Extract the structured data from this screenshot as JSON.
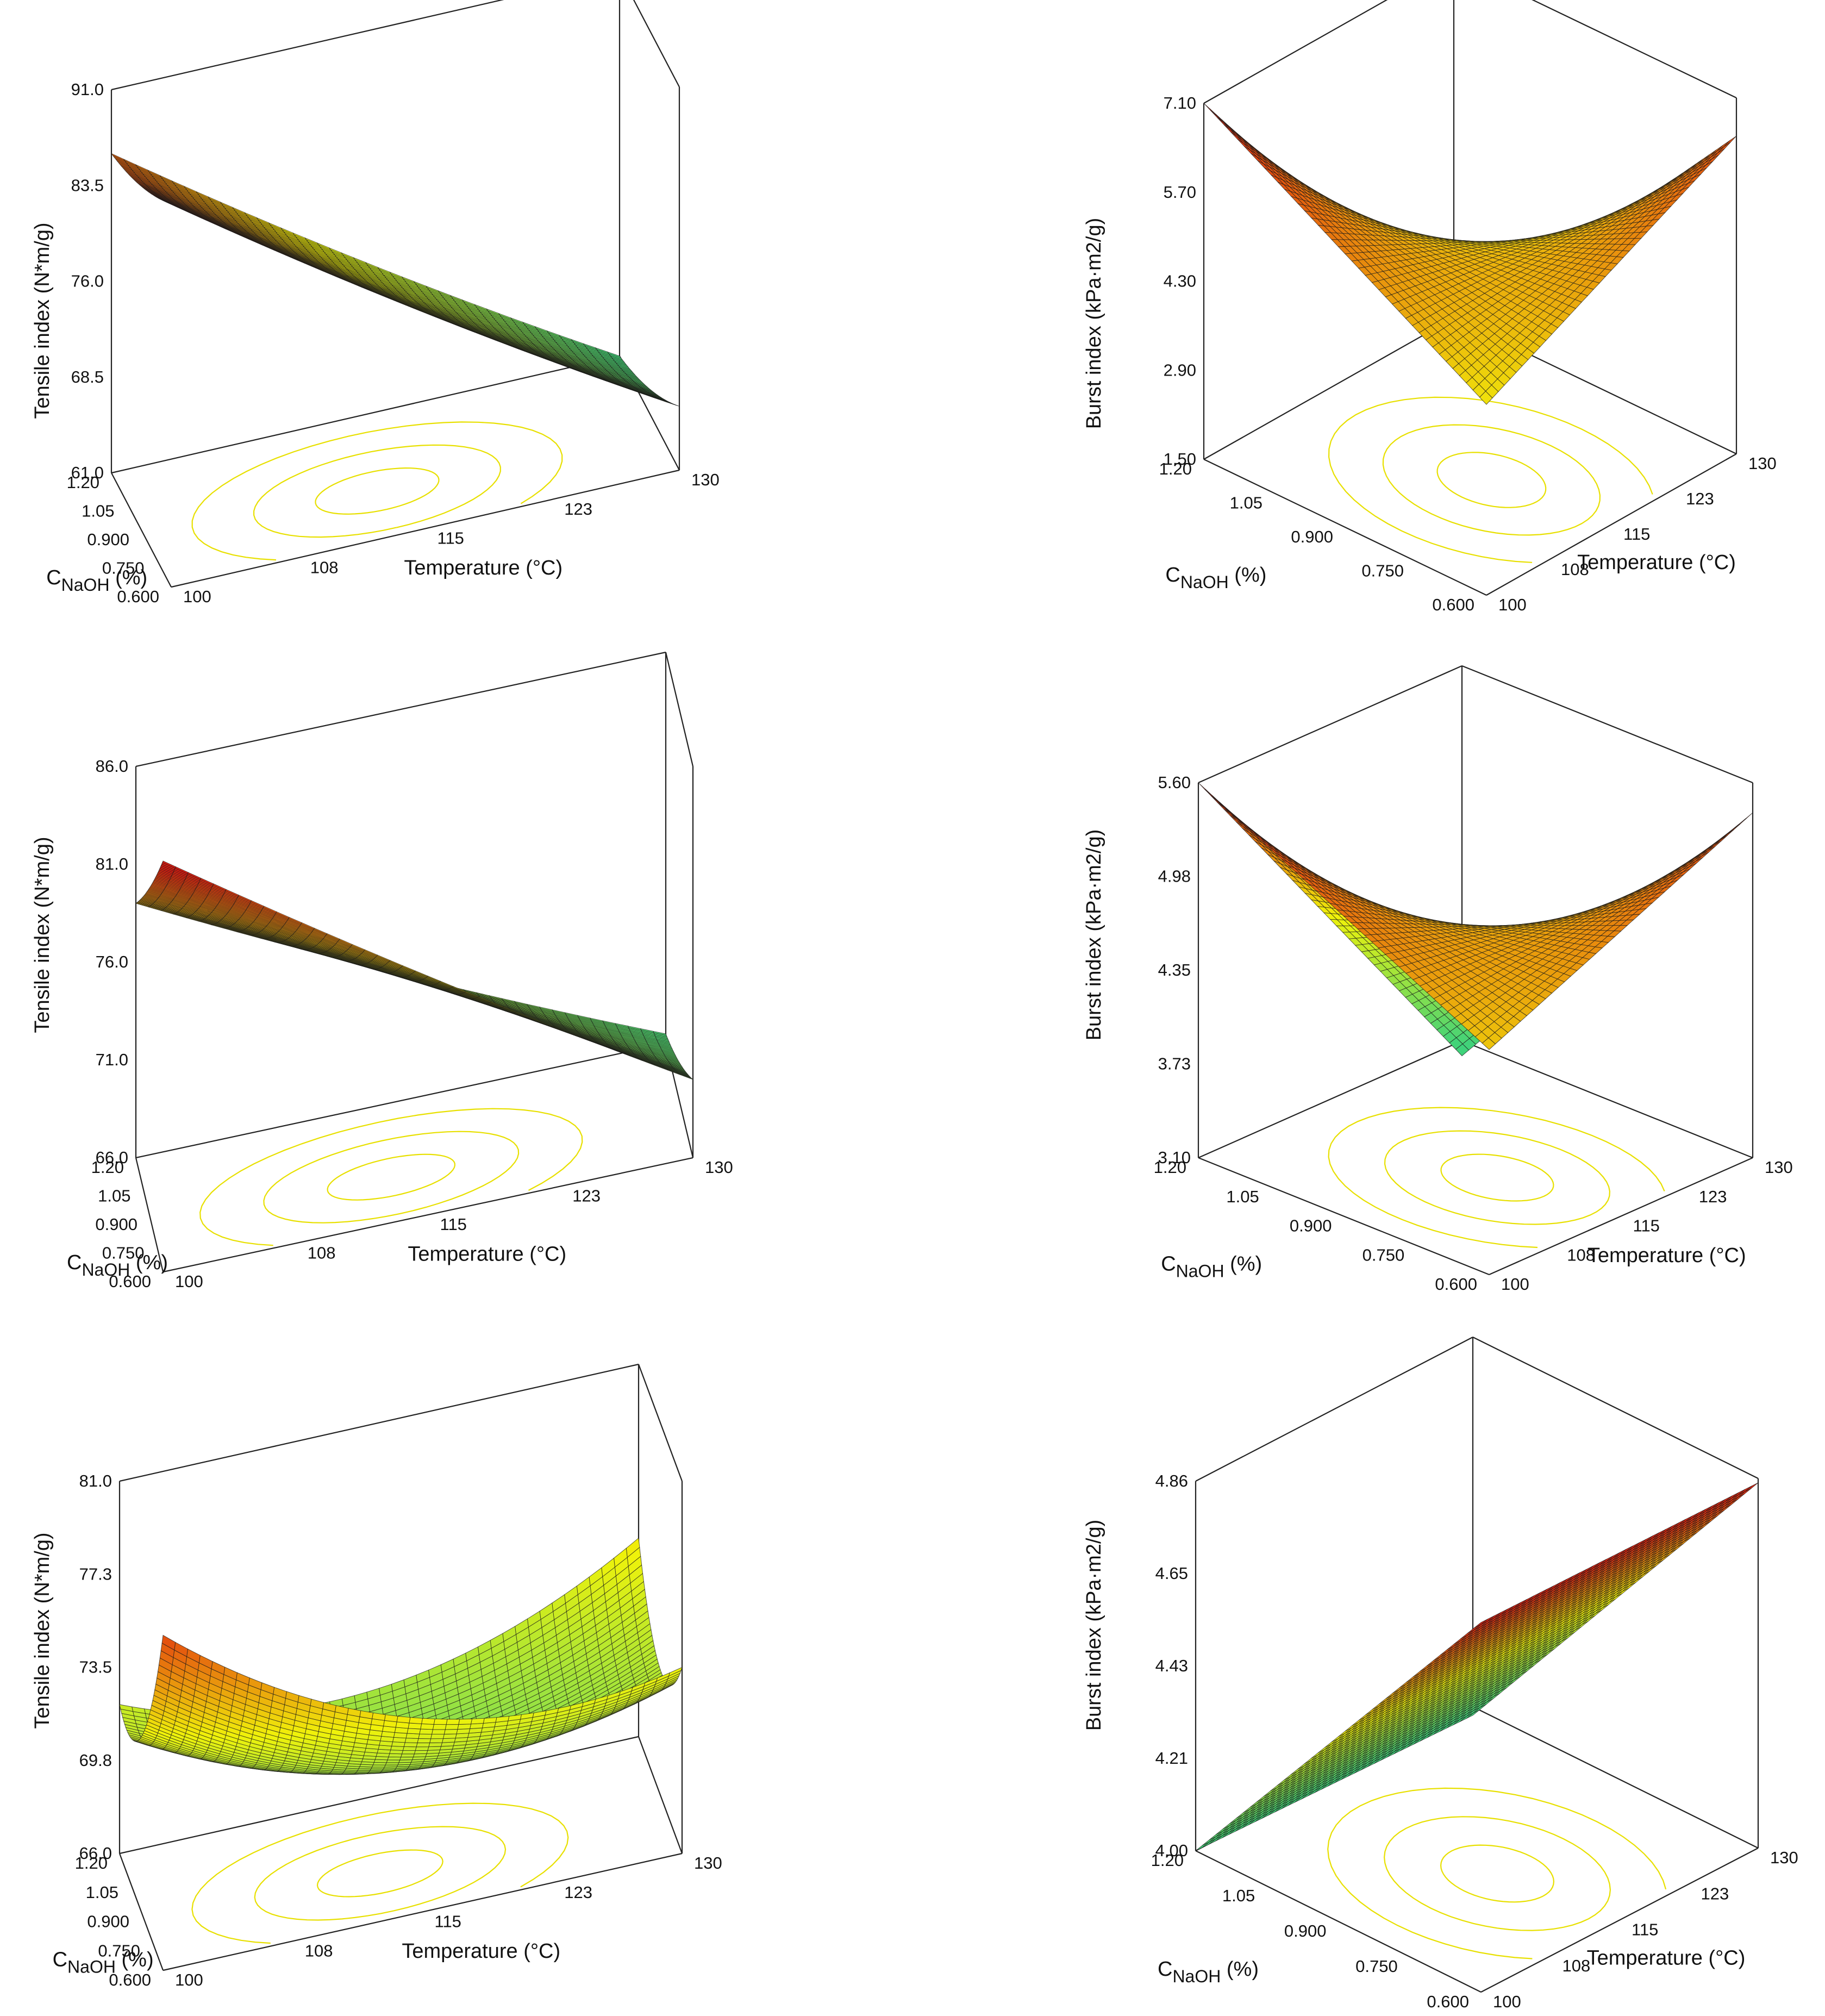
{
  "chart_data": [
    {
      "type": "surface3d",
      "title": "",
      "zlabel": "Tensile index (N*m/g)",
      "xlabel_main": "C",
      "xlabel_sub": "NaOH",
      "xlabel_unit": " (%)",
      "ylabel": "Temperature (°C)",
      "z_ticks": [
        "61.0",
        "68.5",
        "76.0",
        "83.5",
        "91.0"
      ],
      "zlim": [
        61.0,
        91.0
      ],
      "x_ticks": [
        "1.20",
        "1.05",
        "0.900",
        "0.750",
        "0.600"
      ],
      "xlim": [
        0.6,
        1.2
      ],
      "y_ticks": [
        "100",
        "108",
        "115",
        "123",
        "130"
      ],
      "ylim": [
        100,
        130
      ],
      "corners": {
        "c1.20_t100": 86.0,
        "c0.600_t100": 91.0,
        "c0.600_t130": 66.0,
        "c1.20_t130": 61.0
      },
      "minimum": 60.0
    },
    {
      "type": "surface3d",
      "title": "",
      "zlabel": "Burst index (kPa·m2/g)",
      "xlabel_main": "C",
      "xlabel_sub": "NaOH",
      "xlabel_unit": " (%)",
      "ylabel": "Temperature (°C)",
      "z_ticks": [
        "1.50",
        "2.90",
        "4.30",
        "5.70",
        "7.10"
      ],
      "zlim": [
        1.5,
        7.1
      ],
      "x_ticks": [
        "1.20",
        "1.05",
        "0.900",
        "0.750",
        "0.600"
      ],
      "xlim": [
        0.6,
        1.2
      ],
      "y_ticks": [
        "100",
        "108",
        "115",
        "123",
        "130"
      ],
      "ylim": [
        100,
        130
      ],
      "corners": {
        "c1.20_t100": 7.1,
        "c0.600_t100": 4.5,
        "c0.600_t130": 6.5,
        "c1.20_t130": 1.3
      },
      "minimum": 1.3
    },
    {
      "type": "surface3d",
      "title": "",
      "zlabel": "Tensile index (N*m/g)",
      "xlabel_main": "C",
      "xlabel_sub": "NaOH",
      "xlabel_unit": " (%)",
      "ylabel": "Temperature (°C)",
      "z_ticks": [
        "66.0",
        "71.0",
        "76.0",
        "81.0",
        "86.0"
      ],
      "zlim": [
        66.0,
        86.0
      ],
      "x_ticks": [
        "1.20",
        "1.05",
        "0.900",
        "0.750",
        "0.600"
      ],
      "xlim": [
        0.6,
        1.2
      ],
      "y_ticks": [
        "100",
        "108",
        "115",
        "123",
        "130"
      ],
      "ylim": [
        100,
        130
      ],
      "corners": {
        "c1.20_t100": 79.0,
        "c0.600_t100": 87.0,
        "c0.600_t130": 70.0,
        "c1.20_t130": 66.5
      },
      "minimum": 66.0
    },
    {
      "type": "surface3d",
      "title": "",
      "zlabel": "Burst index (kPa·m2/g)",
      "xlabel_main": "C",
      "xlabel_sub": "NaOH",
      "xlabel_unit": " (%)",
      "ylabel": "Temperature (°C)",
      "z_ticks": [
        "3.10",
        "3.73",
        "4.35",
        "4.98",
        "5.60"
      ],
      "zlim": [
        3.1,
        5.6
      ],
      "x_ticks": [
        "1.20",
        "1.05",
        "0.900",
        "0.750",
        "0.600"
      ],
      "xlim": [
        0.6,
        1.2
      ],
      "y_ticks": [
        "100",
        "108",
        "115",
        "123",
        "130"
      ],
      "ylim": [
        100,
        130
      ],
      "corners": {
        "c1.20_t100": 5.6,
        "c0.600_t100": 4.6,
        "c0.600_t130": 5.4,
        "c1.20_t130": 3.0
      },
      "minimum": 3.0
    },
    {
      "type": "surface3d",
      "title": "",
      "zlabel": "Tensile index (N*m/g)",
      "xlabel_main": "C",
      "xlabel_sub": "NaOH",
      "xlabel_unit": " (%)",
      "ylabel": "Temperature (°C)",
      "z_ticks": [
        "66.0",
        "69.8",
        "73.5",
        "77.3",
        "81.0"
      ],
      "zlim": [
        66.0,
        81.0
      ],
      "x_ticks": [
        "1.20",
        "1.05",
        "0.900",
        "0.750",
        "0.600"
      ],
      "xlim": [
        0.6,
        1.2
      ],
      "y_ticks": [
        "100",
        "108",
        "115",
        "123",
        "130"
      ],
      "ylim": [
        100,
        130
      ],
      "corners": {
        "c1.20_t100": 72.0,
        "c0.600_t100": 79.5,
        "c0.600_t130": 73.5,
        "c1.20_t130": 74.0
      },
      "minimum": 67.5
    },
    {
      "type": "surface3d",
      "title": "",
      "zlabel": "Burst index (kPa·m2/g)",
      "xlabel_main": "C",
      "xlabel_sub": "NaOH",
      "xlabel_unit": " (%)",
      "ylabel": "Temperature (°C)",
      "z_ticks": [
        "4.00",
        "4.21",
        "4.43",
        "4.65",
        "4.86"
      ],
      "zlim": [
        4.0,
        4.86
      ],
      "x_ticks": [
        "1.20",
        "1.05",
        "0.900",
        "0.750",
        "0.600"
      ],
      "xlim": [
        0.6,
        1.2
      ],
      "y_ticks": [
        "100",
        "108",
        "115",
        "123",
        "130"
      ],
      "ylim": [
        100,
        130
      ],
      "corners": {
        "c1.20_t100": 4.0,
        "c0.600_t100": 4.86,
        "c0.600_t130": 4.85,
        "c1.20_t130": 3.98
      },
      "minimum": 3.98
    }
  ],
  "colors": {
    "high": "#e01b10",
    "mid": "#f0f20a",
    "low": "#3fd27a",
    "frame": "#222222",
    "contour": "#e8e000"
  }
}
